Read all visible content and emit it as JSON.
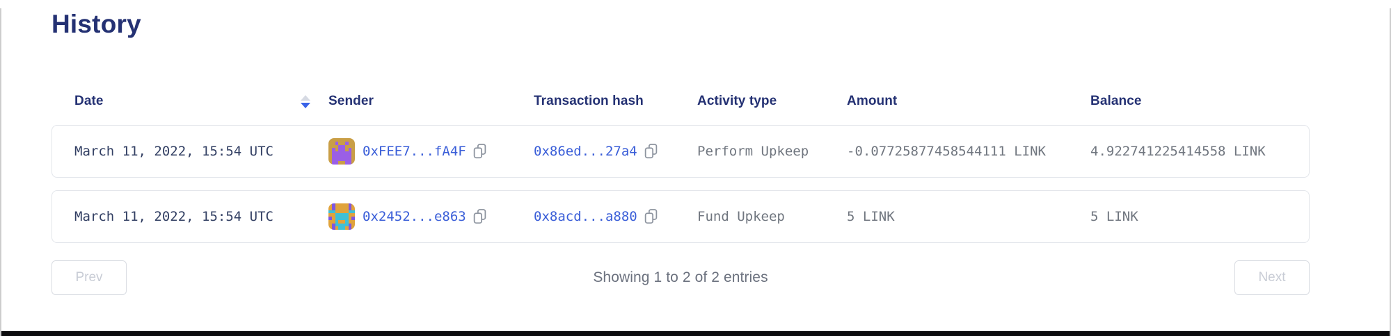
{
  "page": {
    "title": "History"
  },
  "colors": {
    "heading_navy": "#243173",
    "link_blue": "#3a5ed8",
    "body_gray": "#70767f",
    "date_navy": "#323f63",
    "sort_active_blue": "#3a63e8",
    "sort_inactive_gray": "#d6dae3",
    "row_border": "#e3e6eb",
    "disabled_button_text": "#c8ccd5",
    "bottom_bar": "#0d0d0f"
  },
  "table": {
    "header": {
      "date": "Date",
      "sender": "Sender",
      "tx_hash": "Transaction hash",
      "activity": "Activity type",
      "amount": "Amount",
      "balance": "Balance",
      "date_sort_state": "descending"
    },
    "rows": [
      {
        "date": "March 11, 2022, 15:54 UTC",
        "sender_address": "0xFEE7...fA4F",
        "tx_hash": "0x86ed...27a4",
        "activity": "Perform Upkeep",
        "amount": "-0.07725877458544111 LINK",
        "balance": "4.922741225414558 LINK",
        "avatar": {
          "palette": {
            "g": "#c99e46",
            "p": "#9a5fe6"
          },
          "grid": [
            "gggggggg",
            "ggpggpgg",
            "gggppggg",
            "gpgppgpg",
            "gppppppg",
            "gppppppg",
            "gppppppg",
            "gppggppg"
          ]
        }
      },
      {
        "date": "March 11, 2022, 15:54 UTC",
        "sender_address": "0x2452...e863",
        "tx_hash": "0x8acd...a880",
        "activity": "Fund Upkeep",
        "amount": "5 LINK",
        "balance": "5 LINK",
        "avatar": {
          "palette": {
            "o": "#e0a33c",
            "t": "#3fc0d6",
            "p": "#7e57e0"
          },
          "grid": [
            "opoooopo",
            "opoooopo",
            "ttoooott",
            "oottttoo",
            "pottttop",
            "ootootoo",
            "opttttpo",
            "opottopo"
          ]
        }
      }
    ]
  },
  "pagination": {
    "prev_label": "Prev",
    "next_label": "Next",
    "summary": "Showing 1 to 2 of 2 entries"
  }
}
